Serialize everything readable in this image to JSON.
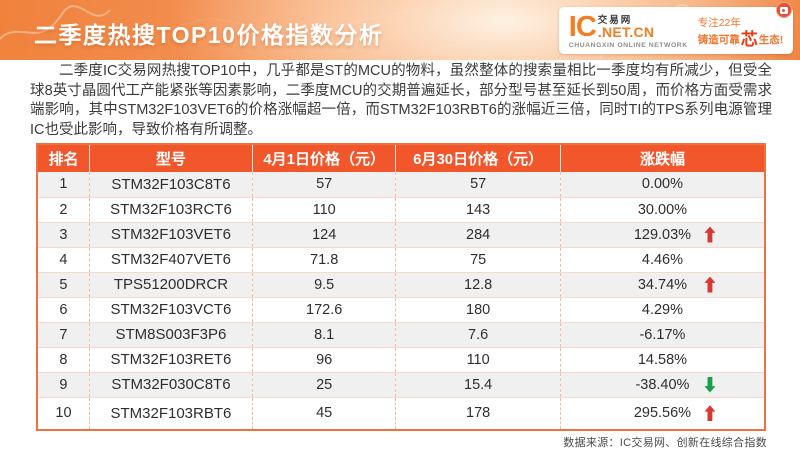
{
  "banner": {
    "title": "二季度热搜TOP10价格指数分析"
  },
  "logo": {
    "ic": "IC",
    "trade_label": "交易网",
    "net": ".NET.CN",
    "subtitle": "CHUANGXIN ONLINE NETWORK",
    "slogan_top": "专注22年",
    "slogan_pre": "铸造可靠",
    "slogan_chip": "芯",
    "slogan_post": "生态!"
  },
  "intro": "二季度IC交易网热搜TOP10中，几乎都是ST的MCU的物料，虽然整体的搜索量相比一季度均有所减少，但受全球8英寸晶圆代工产能紧张等因素影响，二季度MCU的交期普遍延长，部分型号甚至延长到50周，而价格方面受需求端影响，其中STM32F103VET6的价格涨幅超一倍，而STM32F103RBT6的涨幅近三倍，同时TI的TPS系列电源管理IC也受此影响，导致价格有所调整。",
  "footer": "数据来源：IC交易网、创新在线综合指数",
  "colors": {
    "banner_orange": "#ee7a33",
    "table_header_bg": "#f2562b",
    "table_border": "#ee7240",
    "up_arrow": "#d93832",
    "down_arrow": "#17a04c",
    "zebra_row": "#f0f0f0"
  },
  "chart_data": {
    "type": "table",
    "title": "二季度热搜TOP10价格指数分析",
    "columns": [
      "排名",
      "型号",
      "4月1日价格（元）",
      "6月30日价格（元）",
      "涨跌幅"
    ],
    "rows": [
      {
        "rank": "1",
        "model": "STM32F103C8T6",
        "price_apr": "57",
        "price_jun": "57",
        "change": "0.00%",
        "arrow": "none"
      },
      {
        "rank": "2",
        "model": "STM32F103RCT6",
        "price_apr": "110",
        "price_jun": "143",
        "change": "30.00%",
        "arrow": "none"
      },
      {
        "rank": "3",
        "model": "STM32F103VET6",
        "price_apr": "124",
        "price_jun": "284",
        "change": "129.03%",
        "arrow": "up"
      },
      {
        "rank": "4",
        "model": "STM32F407VET6",
        "price_apr": "71.8",
        "price_jun": "75",
        "change": "4.46%",
        "arrow": "none"
      },
      {
        "rank": "5",
        "model": "TPS51200DRCR",
        "price_apr": "9.5",
        "price_jun": "12.8",
        "change": "34.74%",
        "arrow": "up"
      },
      {
        "rank": "6",
        "model": "STM32F103VCT6",
        "price_apr": "172.6",
        "price_jun": "180",
        "change": "4.29%",
        "arrow": "none"
      },
      {
        "rank": "7",
        "model": "STM8S003F3P6",
        "price_apr": "8.1",
        "price_jun": "7.6",
        "change": "-6.17%",
        "arrow": "none"
      },
      {
        "rank": "8",
        "model": "STM32F103RET6",
        "price_apr": "96",
        "price_jun": "110",
        "change": "14.58%",
        "arrow": "none"
      },
      {
        "rank": "9",
        "model": "STM32F030C8T6",
        "price_apr": "25",
        "price_jun": "15.4",
        "change": "-38.40%",
        "arrow": "down"
      },
      {
        "rank": "10",
        "model": "STM32F103RBT6",
        "price_apr": "45",
        "price_jun": "178",
        "change": "295.56%",
        "arrow": "up"
      }
    ]
  }
}
